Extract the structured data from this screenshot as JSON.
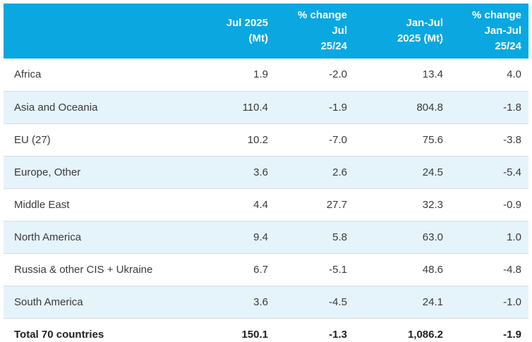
{
  "colors": {
    "header_bg": "#0aa7e0",
    "header_text": "#ffffff",
    "row_bg": "#ffffff",
    "row_alt_bg": "#e5f3fb",
    "border": "#d6dde2",
    "text": "#3a3a3a",
    "total_text": "#222222"
  },
  "table": {
    "region_header": "",
    "columns": [
      {
        "line1": "Jul 2025",
        "line2": "(Mt)"
      },
      {
        "line1": "% change Jul",
        "line2": "25/24"
      },
      {
        "line1": "Jan-Jul",
        "line2": "2025 (Mt)"
      },
      {
        "line1": "% change",
        "line2": "Jan-Jul 25/24"
      }
    ],
    "rows": [
      {
        "region": "Africa",
        "values": [
          "1.9",
          "-2.0",
          "13.4",
          "4.0"
        ],
        "total": false
      },
      {
        "region": "Asia and Oceania",
        "values": [
          "110.4",
          "-1.9",
          "804.8",
          "-1.8"
        ],
        "total": false
      },
      {
        "region": "EU (27)",
        "values": [
          "10.2",
          "-7.0",
          "75.6",
          "-3.8"
        ],
        "total": false
      },
      {
        "region": "Europe, Other",
        "values": [
          "3.6",
          "2.6",
          "24.5",
          "-5.4"
        ],
        "total": false
      },
      {
        "region": "Middle East",
        "values": [
          "4.4",
          "27.7",
          "32.3",
          "-0.9"
        ],
        "total": false
      },
      {
        "region": "North America",
        "values": [
          "9.4",
          "5.8",
          "63.0",
          "1.0"
        ],
        "total": false
      },
      {
        "region": "Russia & other CIS + Ukraine",
        "values": [
          "6.7",
          "-5.1",
          "48.6",
          "-4.8"
        ],
        "total": false
      },
      {
        "region": "South America",
        "values": [
          "3.6",
          "-4.5",
          "24.1",
          "-1.0"
        ],
        "total": false
      },
      {
        "region": "Total 70 countries",
        "values": [
          "150.1",
          "-1.3",
          "1,086.2",
          "-1.9"
        ],
        "total": true
      }
    ]
  },
  "chart_data": {
    "type": "table",
    "columns": [
      "",
      "Jul 2025 (Mt)",
      "% change Jul 25/24",
      "Jan-Jul 2025 (Mt)",
      "% change Jan-Jul 25/24"
    ],
    "rows": [
      [
        "Africa",
        1.9,
        -2.0,
        13.4,
        4.0
      ],
      [
        "Asia and Oceania",
        110.4,
        -1.9,
        804.8,
        -1.8
      ],
      [
        "EU (27)",
        10.2,
        -7.0,
        75.6,
        -3.8
      ],
      [
        "Europe, Other",
        3.6,
        2.6,
        24.5,
        -5.4
      ],
      [
        "Middle East",
        4.4,
        27.7,
        32.3,
        -0.9
      ],
      [
        "North America",
        9.4,
        5.8,
        63.0,
        1.0
      ],
      [
        "Russia & other CIS + Ukraine",
        6.7,
        -5.1,
        48.6,
        -4.8
      ],
      [
        "South America",
        3.6,
        -4.5,
        24.1,
        -1.0
      ],
      [
        "Total 70 countries",
        150.1,
        -1.3,
        1086.2,
        -1.9
      ]
    ]
  }
}
